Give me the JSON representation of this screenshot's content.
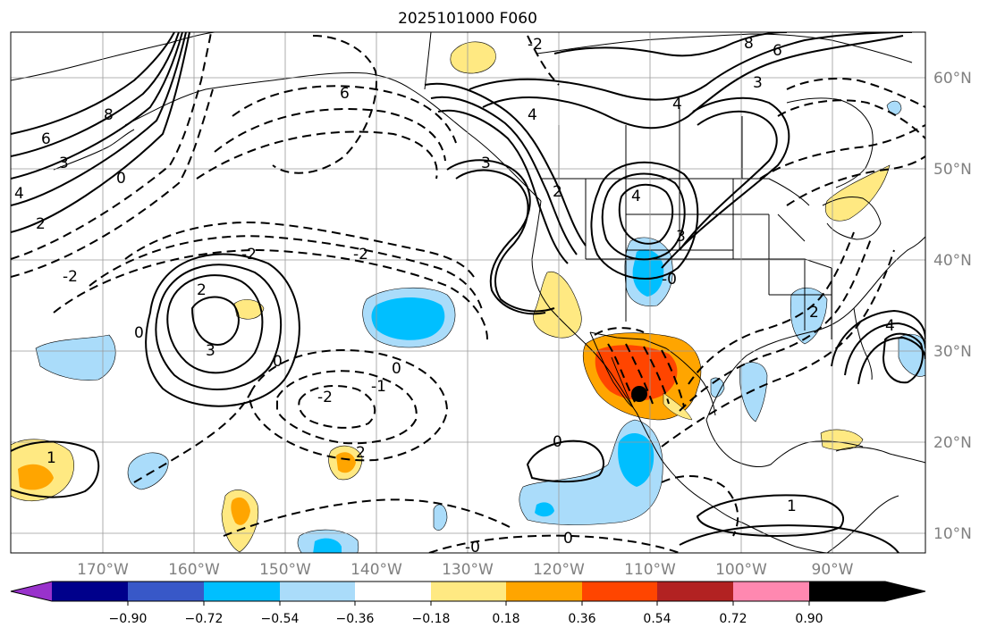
{
  "title": "2025101000 F060",
  "map": {
    "lon_labels": [
      "170°W",
      "160°W",
      "150°W",
      "140°W",
      "130°W",
      "120°W",
      "110°W",
      "100°W",
      "90°W"
    ],
    "lat_labels": [
      "60°N",
      "50°N",
      "40°N",
      "30°N",
      "20°N",
      "10°N"
    ],
    "contour_labels": [
      "8",
      "6",
      "3",
      "4",
      "2",
      "0",
      "-2",
      "-2",
      "6",
      "4",
      "3",
      "4",
      "2",
      "8",
      "6",
      "3",
      "4",
      "4",
      "3",
      "2",
      "-2",
      "0",
      "3",
      "2",
      "0",
      "-1",
      "-2",
      "1",
      "2",
      "0",
      "1",
      "0",
      "-0",
      "0",
      "-0",
      "-2"
    ],
    "station_marker": "storm-position"
  },
  "colorbar": {
    "tick_labels": [
      "−0.90",
      "−0.72",
      "−0.54",
      "−0.36",
      "−0.18",
      "0.18",
      "0.36",
      "0.54",
      "0.72",
      "0.90"
    ],
    "colors": [
      "#9932cc",
      "#00008b",
      "#3858c8",
      "#00bfff",
      "#aadcfa",
      "#ffffff",
      "#ffe982",
      "#ffa500",
      "#ff4500",
      "#b22222",
      "#ff88b0"
    ]
  }
}
